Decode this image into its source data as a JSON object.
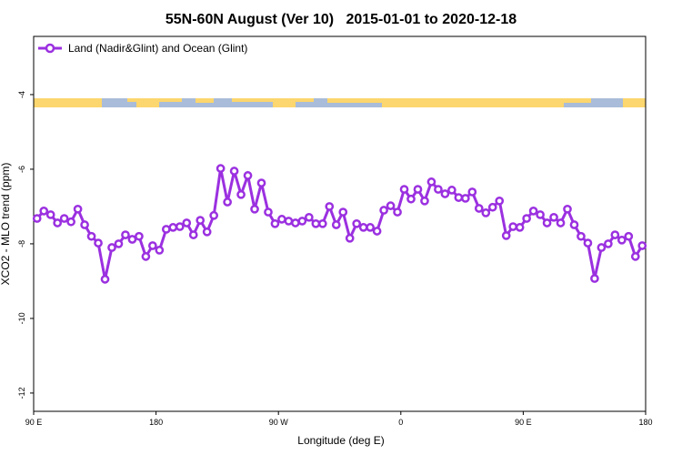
{
  "chart_data": {
    "type": "line",
    "title": "55N-60N August (Ver 10)   2015-01-01 to 2020-12-18",
    "x_label": "Longitude (deg E)",
    "y_label": "XCO2 - MLO trend (ppm)",
    "xlim": [
      90,
      540
    ],
    "xticks": [
      {
        "value": 90,
        "label": "90 E"
      },
      180,
      {
        "value": 270,
        "label": "90 W"
      },
      {
        "value": 360,
        "label": "0"
      },
      {
        "value": 450,
        "label": "90 E"
      },
      {
        "value": 540,
        "label": "180"
      }
    ],
    "ylim": [
      -12.49,
      -2.44
    ],
    "yticks": [
      -4,
      -6,
      -8,
      -10,
      -12
    ],
    "legend_position": "upper left",
    "x": [
      92.5,
      97.5,
      102.5,
      107.5,
      112.5,
      117.5,
      122.5,
      127.5,
      132.5,
      137.5,
      142.5,
      147.5,
      152.5,
      157.5,
      162.5,
      167.5,
      172.5,
      177.5,
      182.5,
      187.5,
      192.5,
      197.5,
      202.5,
      207.5,
      212.5,
      217.5,
      222.5,
      227.5,
      232.5,
      237.5,
      242.5,
      247.5,
      252.5,
      257.5,
      262.5,
      267.5,
      272.5,
      277.5,
      282.5,
      287.5,
      292.5,
      297.5,
      302.5,
      307.5,
      312.5,
      317.5,
      322.5,
      327.5,
      332.5,
      337.5,
      342.5,
      347.5,
      352.5,
      357.5,
      362.5,
      367.5,
      372.5,
      377.5,
      382.5,
      387.5,
      392.5,
      397.5,
      402.5,
      407.5,
      412.5,
      417.5,
      422.5,
      427.5,
      432.5,
      437.5,
      442.5,
      447.5,
      452.5,
      457.5,
      462.5,
      467.5,
      472.5,
      477.5,
      482.5,
      487.5,
      492.5,
      497.5,
      502.5,
      507.5,
      512.5,
      517.5,
      522.5,
      527.5,
      532.5,
      537.5
    ],
    "series": [
      {
        "name": "Land (Nadir&Glint) and Ocean (Glint)",
        "color": "#9b30e0",
        "values": [
          -7.32,
          -7.12,
          -7.22,
          -7.44,
          -7.32,
          -7.41,
          -7.07,
          -7.49,
          -7.8,
          -7.98,
          -8.95,
          -8.1,
          -8.0,
          -7.76,
          -7.88,
          -7.8,
          -8.34,
          -8.05,
          -8.17,
          -7.61,
          -7.56,
          -7.54,
          -7.44,
          -7.76,
          -7.37,
          -7.68,
          -7.24,
          -5.98,
          -6.88,
          -6.05,
          -6.68,
          -6.17,
          -7.07,
          -6.37,
          -7.15,
          -7.46,
          -7.34,
          -7.39,
          -7.44,
          -7.39,
          -7.29,
          -7.46,
          -7.46,
          -7.0,
          -7.49,
          -7.15,
          -7.85,
          -7.46,
          -7.56,
          -7.56,
          -7.66,
          -7.1,
          -6.98,
          -7.15,
          -6.54,
          -6.8,
          -6.54,
          -6.85,
          -6.34,
          -6.54,
          -6.66,
          -6.56,
          -6.76,
          -6.78,
          -6.61,
          -7.05,
          -7.17,
          -7.02,
          -6.85,
          -7.78,
          -7.54,
          -7.56,
          -7.32,
          -7.12,
          -7.22,
          -7.44,
          -7.29,
          -7.44,
          -7.07,
          -7.49,
          -7.8,
          -7.98,
          -8.93,
          -8.1,
          -8.0,
          -7.76,
          -7.9,
          -7.8,
          -8.34,
          -8.05
        ]
      }
    ]
  }
}
